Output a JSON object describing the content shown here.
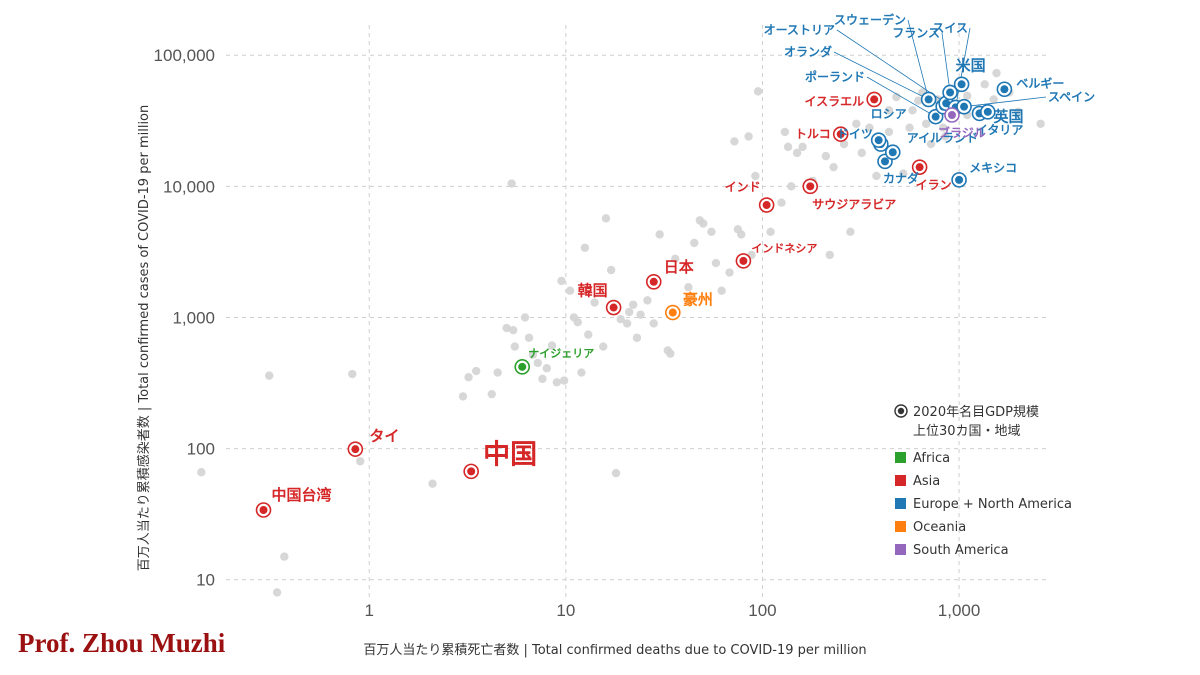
{
  "credit": "Prof. Zhou Muzhi",
  "chart_data": {
    "type": "scatter",
    "xlabel": "百万人当たり累積死亡者数 | Total confirmed deaths due to COVID-19 per million",
    "ylabel": "百万人当たり累積感染者数 | Total confirmed cases of COVID-19 per million",
    "x_scale": "log",
    "y_scale": "log",
    "xlim": [
      0.13,
      2900
    ],
    "ylim": [
      7,
      170000
    ],
    "grid": true,
    "x_ticks": [
      {
        "v": 1,
        "t": "1"
      },
      {
        "v": 10,
        "t": "10"
      },
      {
        "v": 100,
        "t": "100"
      },
      {
        "v": 1000,
        "t": "1,000"
      }
    ],
    "y_ticks": [
      {
        "v": 10,
        "t": "10"
      },
      {
        "v": 100,
        "t": "100"
      },
      {
        "v": 1000,
        "t": "1,000"
      },
      {
        "v": 10000,
        "t": "10,000"
      },
      {
        "v": 100000,
        "t": "100,000"
      }
    ],
    "colors": {
      "Africa": "#2ca02c",
      "Asia": "#d62728",
      "Europe + North America": "#1f77b4",
      "Oceania": "#ff7f0e",
      "South America": "#9467bd",
      "other": "#d3d3d3"
    },
    "legend": {
      "position": "bottom-right",
      "marker_title": "2020年名目GDP規模\n上位30カ国・地域",
      "groups": [
        "Africa",
        "Asia",
        "Europe + North America",
        "Oceania",
        "South America"
      ]
    },
    "highlighted": [
      {
        "name": "中国",
        "region": "Asia",
        "x": 3.3,
        "y": 67
      },
      {
        "name": "中国台湾",
        "region": "Asia",
        "x": 0.29,
        "y": 34
      },
      {
        "name": "タイ",
        "region": "Asia",
        "x": 0.85,
        "y": 99
      },
      {
        "name": "ナイジェリア",
        "region": "Africa",
        "x": 6.0,
        "y": 420
      },
      {
        "name": "韓国",
        "region": "Asia",
        "x": 17.5,
        "y": 1190
      },
      {
        "name": "日本",
        "region": "Asia",
        "x": 28,
        "y": 1870
      },
      {
        "name": "豪州",
        "region": "Oceania",
        "x": 35,
        "y": 1090
      },
      {
        "name": "インドネシア",
        "region": "Asia",
        "x": 80,
        "y": 2700
      },
      {
        "name": "インド",
        "region": "Asia",
        "x": 105,
        "y": 7200
      },
      {
        "name": "サウジアラビア",
        "region": "Asia",
        "x": 175,
        "y": 10000
      },
      {
        "name": "トルコ",
        "region": "Asia",
        "x": 250,
        "y": 25000
      },
      {
        "name": "イスラエル",
        "region": "Asia",
        "x": 370,
        "y": 46000
      },
      {
        "name": "イラン",
        "region": "Asia",
        "x": 630,
        "y": 14000
      },
      {
        "name": "メキシコ",
        "region": "Europe + North America",
        "x": 1000,
        "y": 11200
      },
      {
        "name": "カナダ",
        "region": "Europe + North America",
        "x": 420,
        "y": 15500
      },
      {
        "name": "アイルランド",
        "region": "Europe + North America",
        "x": 460,
        "y": 18200
      },
      {
        "name": "ドイツ",
        "region": "Europe + North America",
        "x": 400,
        "y": 21000
      },
      {
        "name": "ロシア",
        "region": "Europe + North America",
        "x": 390,
        "y": 22500
      },
      {
        "name": "ポーランド",
        "region": "Europe + North America",
        "x": 760,
        "y": 34000
      },
      {
        "name": "オランダ",
        "region": "Europe + North America",
        "x": 830,
        "y": 40500
      },
      {
        "name": "オーストリア",
        "region": "Europe + North America",
        "x": 860,
        "y": 43000
      },
      {
        "name": "スウェーデン",
        "region": "Europe + North America",
        "x": 700,
        "y": 46000
      },
      {
        "name": "フランス",
        "region": "Europe + North America",
        "x": 900,
        "y": 52000
      },
      {
        "name": "スイス",
        "region": "Europe + North America",
        "x": 960,
        "y": 40000
      },
      {
        "name": "米国",
        "region": "Europe + North America",
        "x": 1030,
        "y": 60000
      },
      {
        "name": "英国",
        "region": "Europe + North America",
        "x": 1270,
        "y": 36000
      },
      {
        "name": "イタリア",
        "region": "Europe + North America",
        "x": 1400,
        "y": 37000
      },
      {
        "name": "スペイン",
        "region": "Europe + North America",
        "x": 1060,
        "y": 40500
      },
      {
        "name": "ベルギー",
        "region": "Europe + North America",
        "x": 1700,
        "y": 55000
      },
      {
        "name": "ブラジル",
        "region": "South America",
        "x": 920,
        "y": 35000
      }
    ],
    "others": [
      [
        0.14,
        66
      ],
      [
        0.31,
        360
      ],
      [
        0.34,
        8
      ],
      [
        0.37,
        15
      ],
      [
        0.82,
        370
      ],
      [
        0.9,
        80
      ],
      [
        2.1,
        54
      ],
      [
        3.0,
        250
      ],
      [
        3.2,
        350
      ],
      [
        3.5,
        390
      ],
      [
        4.2,
        260
      ],
      [
        4.5,
        380
      ],
      [
        5.0,
        830
      ],
      [
        5.4,
        800
      ],
      [
        5.5,
        600
      ],
      [
        6.2,
        1000
      ],
      [
        6.5,
        700
      ],
      [
        6.8,
        520
      ],
      [
        7.2,
        450
      ],
      [
        7.6,
        340
      ],
      [
        8.0,
        410
      ],
      [
        8.5,
        610
      ],
      [
        9.0,
        320
      ],
      [
        9.5,
        1900
      ],
      [
        9.8,
        330
      ],
      [
        10.5,
        1600
      ],
      [
        11.0,
        1000
      ],
      [
        11.5,
        920
      ],
      [
        12.0,
        380
      ],
      [
        12.5,
        3400
      ],
      [
        13.0,
        740
      ],
      [
        14.0,
        1300
      ],
      [
        15.5,
        600
      ],
      [
        16.0,
        5700
      ],
      [
        17.0,
        2300
      ],
      [
        18.0,
        65
      ],
      [
        19.0,
        970
      ],
      [
        20.5,
        900
      ],
      [
        21.0,
        1100
      ],
      [
        22.0,
        1250
      ],
      [
        23.0,
        700
      ],
      [
        24.0,
        1050
      ],
      [
        26.0,
        1350
      ],
      [
        30.0,
        4300
      ],
      [
        33.0,
        560
      ],
      [
        34.0,
        530
      ],
      [
        36.0,
        2800
      ],
      [
        42.0,
        1700
      ],
      [
        45.0,
        3700
      ],
      [
        48.0,
        5500
      ],
      [
        50.0,
        5200
      ],
      [
        55.0,
        4500
      ],
      [
        58.0,
        2600
      ],
      [
        62.0,
        1600
      ],
      [
        68.0,
        2200
      ],
      [
        72.0,
        22000
      ],
      [
        75.0,
        4700
      ],
      [
        78.0,
        4300
      ],
      [
        85.0,
        24000
      ],
      [
        88.0,
        3000
      ],
      [
        92.0,
        12000
      ],
      [
        95.0,
        53000
      ],
      [
        110.0,
        4500
      ],
      [
        125.0,
        7500
      ],
      [
        130.0,
        26000
      ],
      [
        135.0,
        20000
      ],
      [
        140.0,
        10000
      ],
      [
        150.0,
        18000
      ],
      [
        160.0,
        20000
      ],
      [
        180.0,
        11000
      ],
      [
        210.0,
        17000
      ],
      [
        220.0,
        3000
      ],
      [
        230.0,
        14000
      ],
      [
        260.0,
        21000
      ],
      [
        280.0,
        4500
      ],
      [
        300.0,
        30000
      ],
      [
        320.0,
        18000
      ],
      [
        350.0,
        28000
      ],
      [
        380.0,
        12000
      ],
      [
        420.0,
        16000
      ],
      [
        440.0,
        26000
      ],
      [
        480.0,
        48000
      ],
      [
        520.0,
        12500
      ],
      [
        560.0,
        28000
      ],
      [
        620.0,
        45000
      ],
      [
        680.0,
        30000
      ],
      [
        720.0,
        21000
      ],
      [
        780.0,
        46000
      ],
      [
        850.0,
        24000
      ],
      [
        1100.0,
        49000
      ],
      [
        1350.0,
        60000
      ],
      [
        1500.0,
        46000
      ],
      [
        1800.0,
        52000
      ],
      [
        2000.0,
        37000
      ],
      [
        2600.0,
        30000
      ],
      [
        1550.0,
        73000
      ],
      [
        5.3,
        10500
      ],
      [
        28.0,
        900
      ],
      [
        440.0,
        38000
      ],
      [
        580.0,
        38000
      ],
      [
        650.0,
        52000
      ],
      [
        1100.0,
        35000
      ],
      [
        830.0,
        28000
      ]
    ]
  }
}
